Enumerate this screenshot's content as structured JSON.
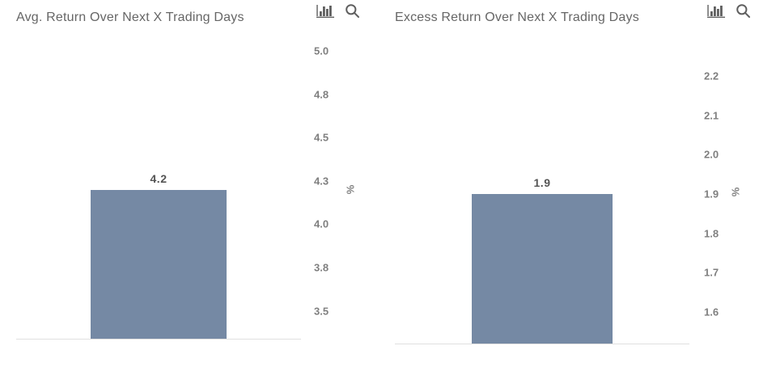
{
  "colors": {
    "bar": "#7589A4",
    "title_text": "#666666",
    "tick_text": "#7f7f7f",
    "value_label_text": "#545454",
    "axis_line": "#e0e0e0",
    "icon": "#5f5f5f"
  },
  "toolbar": {
    "chart_type_icon": "bar-chart-icon",
    "zoom_icon": "magnifier-icon"
  },
  "chart_data": [
    {
      "type": "bar",
      "title": "Avg. Return Over Next X Trading Days",
      "categories": [
        ""
      ],
      "values": [
        4.2
      ],
      "data_labels": [
        "4.2"
      ],
      "xlabel": "",
      "ylabel": "%",
      "ylabel_side": "right",
      "ylim": [
        3.34,
        5.06
      ],
      "yticks": [
        {
          "value": 3.5,
          "label": "3.5"
        },
        {
          "value": 3.75,
          "label": "3.8"
        },
        {
          "value": 4.0,
          "label": "4.0"
        },
        {
          "value": 4.25,
          "label": "4.3"
        },
        {
          "value": 4.5,
          "label": "4.5"
        },
        {
          "value": 4.75,
          "label": "4.8"
        },
        {
          "value": 5.0,
          "label": "5.0"
        }
      ],
      "grid": false,
      "legend": false
    },
    {
      "type": "bar",
      "title": "Excess Return Over Next X Trading Days",
      "categories": [
        ""
      ],
      "values": [
        1.9
      ],
      "data_labels": [
        "1.9"
      ],
      "xlabel": "",
      "ylabel": "%",
      "ylabel_side": "right",
      "ylim": [
        1.52,
        2.29
      ],
      "yticks": [
        {
          "value": 1.6,
          "label": "1.6"
        },
        {
          "value": 1.7,
          "label": "1.7"
        },
        {
          "value": 1.8,
          "label": "1.8"
        },
        {
          "value": 1.9,
          "label": "1.9"
        },
        {
          "value": 2.0,
          "label": "2.0"
        },
        {
          "value": 2.1,
          "label": "2.1"
        },
        {
          "value": 2.2,
          "label": "2.2"
        }
      ],
      "grid": false,
      "legend": false
    }
  ]
}
